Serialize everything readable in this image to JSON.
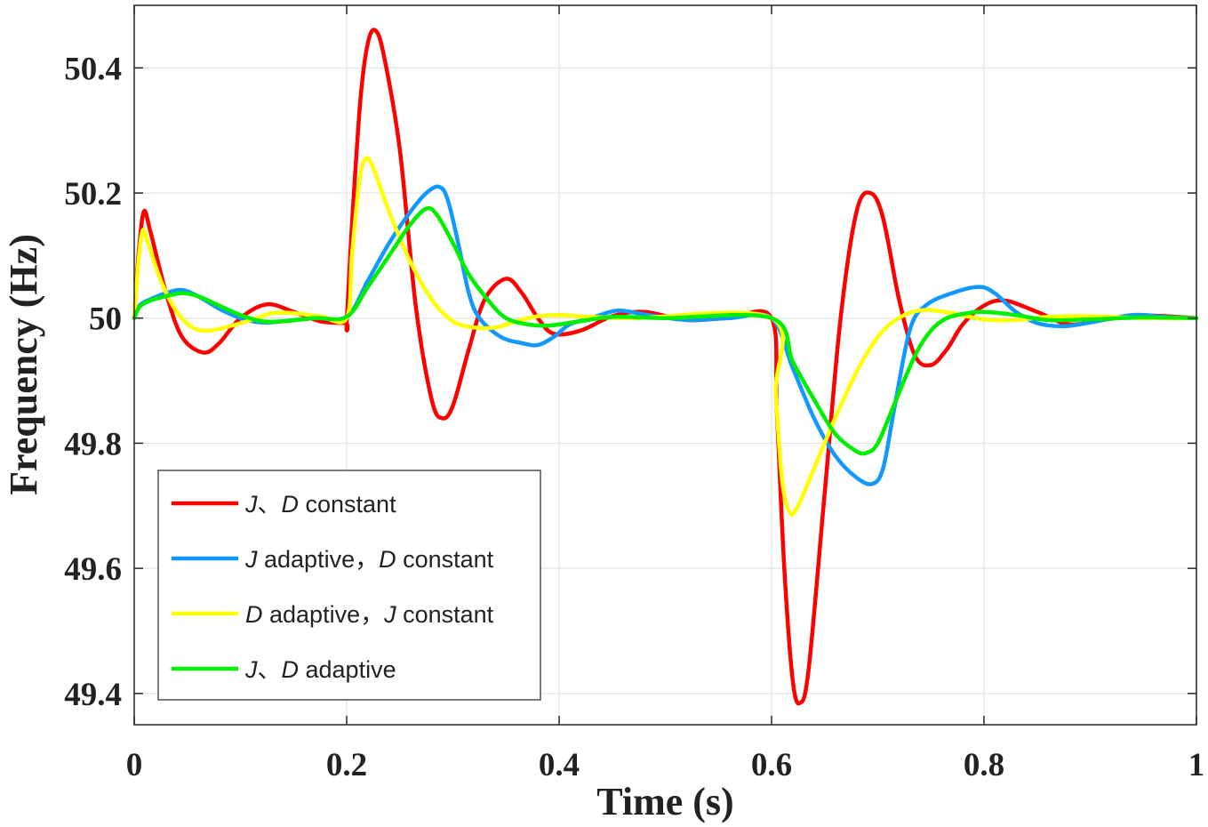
{
  "chart_data": {
    "type": "line",
    "xlabel": "Time (s)",
    "ylabel": "Frequency (Hz)",
    "xlim": [
      0,
      1
    ],
    "ylim": [
      49.35,
      50.5
    ],
    "grid": true,
    "legend_position": "bottom-left",
    "x_ticks": [
      {
        "value": 0,
        "label": "0"
      },
      {
        "value": 0.2,
        "label": "0.2"
      },
      {
        "value": 0.4,
        "label": "0.4"
      },
      {
        "value": 0.6,
        "label": "0.6"
      },
      {
        "value": 0.8,
        "label": "0.8"
      },
      {
        "value": 1,
        "label": "1"
      }
    ],
    "y_ticks": [
      {
        "value": 49.4,
        "label": "49.4"
      },
      {
        "value": 49.6,
        "label": "49.6"
      },
      {
        "value": 49.8,
        "label": "49.8"
      },
      {
        "value": 50.0,
        "label": "50"
      },
      {
        "value": 50.2,
        "label": "50.2"
      },
      {
        "value": 50.4,
        "label": "50.4"
      }
    ],
    "series": [
      {
        "name": "J、D constant",
        "legend_parts": [
          {
            "text": "J",
            "italic": true
          },
          {
            "text": "、",
            "italic": false
          },
          {
            "text": "D",
            "italic": true
          },
          {
            "text": " constant",
            "italic": false
          }
        ],
        "color": "#ff0000",
        "points": [
          [
            0,
            50.0
          ],
          [
            0.004,
            50.1
          ],
          [
            0.009,
            50.17
          ],
          [
            0.015,
            50.14
          ],
          [
            0.03,
            50.04
          ],
          [
            0.045,
            49.97
          ],
          [
            0.065,
            49.945
          ],
          [
            0.08,
            49.96
          ],
          [
            0.1,
            50.0
          ],
          [
            0.125,
            50.022
          ],
          [
            0.15,
            50.01
          ],
          [
            0.175,
            49.995
          ],
          [
            0.199,
            49.992
          ],
          [
            0.2,
            49.992
          ],
          [
            0.205,
            50.15
          ],
          [
            0.213,
            50.35
          ],
          [
            0.22,
            50.44
          ],
          [
            0.227,
            50.46
          ],
          [
            0.235,
            50.42
          ],
          [
            0.25,
            50.27
          ],
          [
            0.265,
            50.02
          ],
          [
            0.28,
            49.87
          ],
          [
            0.29,
            49.84
          ],
          [
            0.3,
            49.86
          ],
          [
            0.315,
            49.95
          ],
          [
            0.33,
            50.03
          ],
          [
            0.35,
            50.063
          ],
          [
            0.365,
            50.04
          ],
          [
            0.38,
            50.0
          ],
          [
            0.395,
            49.975
          ],
          [
            0.42,
            49.98
          ],
          [
            0.45,
            50.003
          ],
          [
            0.48,
            50.01
          ],
          [
            0.52,
            49.997
          ],
          [
            0.56,
            50.0
          ],
          [
            0.6,
            50.0
          ],
          [
            0.605,
            49.85
          ],
          [
            0.612,
            49.6
          ],
          [
            0.62,
            49.42
          ],
          [
            0.627,
            49.385
          ],
          [
            0.635,
            49.44
          ],
          [
            0.65,
            49.72
          ],
          [
            0.665,
            50.0
          ],
          [
            0.68,
            50.17
          ],
          [
            0.693,
            50.2
          ],
          [
            0.705,
            50.16
          ],
          [
            0.72,
            50.03
          ],
          [
            0.735,
            49.94
          ],
          [
            0.75,
            49.925
          ],
          [
            0.765,
            49.95
          ],
          [
            0.78,
            49.99
          ],
          [
            0.8,
            50.02
          ],
          [
            0.82,
            50.028
          ],
          [
            0.85,
            50.01
          ],
          [
            0.88,
            49.99
          ],
          [
            0.91,
            49.997
          ],
          [
            0.95,
            50.004
          ],
          [
            1.0,
            50.0
          ]
        ]
      },
      {
        "name": "J adaptive，D constant",
        "legend_parts": [
          {
            "text": "J",
            "italic": true
          },
          {
            "text": " adaptive，",
            "italic": false
          },
          {
            "text": "D",
            "italic": true
          },
          {
            "text": " constant",
            "italic": false
          }
        ],
        "color": "#1199ff",
        "points": [
          [
            0,
            50.0
          ],
          [
            0.005,
            50.02
          ],
          [
            0.015,
            50.03
          ],
          [
            0.03,
            50.04
          ],
          [
            0.045,
            50.045
          ],
          [
            0.06,
            50.035
          ],
          [
            0.08,
            50.015
          ],
          [
            0.1,
            50.0
          ],
          [
            0.12,
            49.993
          ],
          [
            0.14,
            49.995
          ],
          [
            0.17,
            50.0
          ],
          [
            0.2,
            50.002
          ],
          [
            0.22,
            50.06
          ],
          [
            0.24,
            50.12
          ],
          [
            0.26,
            50.17
          ],
          [
            0.275,
            50.2
          ],
          [
            0.287,
            50.21
          ],
          [
            0.295,
            50.19
          ],
          [
            0.305,
            50.12
          ],
          [
            0.315,
            50.04
          ],
          [
            0.325,
            50.0
          ],
          [
            0.345,
            49.97
          ],
          [
            0.365,
            49.96
          ],
          [
            0.38,
            49.957
          ],
          [
            0.395,
            49.97
          ],
          [
            0.41,
            49.99
          ],
          [
            0.43,
            50.0
          ],
          [
            0.455,
            50.012
          ],
          [
            0.48,
            50.006
          ],
          [
            0.52,
            49.997
          ],
          [
            0.56,
            50.0
          ],
          [
            0.6,
            50.0
          ],
          [
            0.62,
            49.92
          ],
          [
            0.64,
            49.84
          ],
          [
            0.66,
            49.78
          ],
          [
            0.68,
            49.745
          ],
          [
            0.695,
            49.735
          ],
          [
            0.705,
            49.76
          ],
          [
            0.715,
            49.85
          ],
          [
            0.73,
            49.98
          ],
          [
            0.745,
            50.02
          ],
          [
            0.77,
            50.04
          ],
          [
            0.795,
            50.05
          ],
          [
            0.81,
            50.04
          ],
          [
            0.83,
            50.01
          ],
          [
            0.85,
            49.992
          ],
          [
            0.875,
            49.987
          ],
          [
            0.9,
            49.993
          ],
          [
            0.94,
            50.005
          ],
          [
            0.97,
            50.002
          ],
          [
            1.0,
            50.0
          ]
        ]
      },
      {
        "name": "D adaptive，J constant",
        "legend_parts": [
          {
            "text": "D",
            "italic": true
          },
          {
            "text": " adaptive，",
            "italic": false
          },
          {
            "text": "J",
            "italic": true
          },
          {
            "text": " constant",
            "italic": false
          }
        ],
        "color": "#ffff00",
        "points": [
          [
            0,
            50.0
          ],
          [
            0.004,
            50.09
          ],
          [
            0.008,
            50.14
          ],
          [
            0.013,
            50.12
          ],
          [
            0.025,
            50.06
          ],
          [
            0.04,
            50.01
          ],
          [
            0.055,
            49.985
          ],
          [
            0.07,
            49.98
          ],
          [
            0.09,
            49.987
          ],
          [
            0.11,
            49.997
          ],
          [
            0.13,
            50.008
          ],
          [
            0.15,
            50.008
          ],
          [
            0.175,
            50.003
          ],
          [
            0.2,
            50.0
          ],
          [
            0.205,
            50.1
          ],
          [
            0.212,
            50.22
          ],
          [
            0.218,
            50.255
          ],
          [
            0.225,
            50.24
          ],
          [
            0.24,
            50.17
          ],
          [
            0.26,
            50.09
          ],
          [
            0.28,
            50.03
          ],
          [
            0.3,
            49.995
          ],
          [
            0.32,
            49.985
          ],
          [
            0.34,
            49.985
          ],
          [
            0.36,
            49.995
          ],
          [
            0.38,
            50.003
          ],
          [
            0.4,
            50.005
          ],
          [
            0.43,
            50.002
          ],
          [
            0.47,
            50.0
          ],
          [
            0.6,
            50.0
          ],
          [
            0.604,
            49.88
          ],
          [
            0.61,
            49.74
          ],
          [
            0.617,
            49.69
          ],
          [
            0.625,
            49.7
          ],
          [
            0.645,
            49.78
          ],
          [
            0.665,
            49.86
          ],
          [
            0.685,
            49.93
          ],
          [
            0.705,
            49.98
          ],
          [
            0.725,
            50.005
          ],
          [
            0.745,
            50.013
          ],
          [
            0.77,
            50.008
          ],
          [
            0.8,
            49.998
          ],
          [
            0.83,
            49.997
          ],
          [
            0.86,
            50.002
          ],
          [
            0.9,
            50.003
          ],
          [
            0.95,
            50.0
          ],
          [
            1.0,
            50.0
          ]
        ]
      },
      {
        "name": "J、D adaptive",
        "legend_parts": [
          {
            "text": "J",
            "italic": true
          },
          {
            "text": "、",
            "italic": false
          },
          {
            "text": "D",
            "italic": true
          },
          {
            "text": " adaptive",
            "italic": false
          }
        ],
        "color": "#00ee00",
        "points": [
          [
            0,
            50.0
          ],
          [
            0.005,
            50.018
          ],
          [
            0.015,
            50.028
          ],
          [
            0.03,
            50.035
          ],
          [
            0.045,
            50.04
          ],
          [
            0.06,
            50.035
          ],
          [
            0.08,
            50.02
          ],
          [
            0.1,
            50.005
          ],
          [
            0.12,
            49.995
          ],
          [
            0.14,
            49.995
          ],
          [
            0.17,
            50.0
          ],
          [
            0.2,
            50.002
          ],
          [
            0.22,
            50.05
          ],
          [
            0.24,
            50.1
          ],
          [
            0.26,
            50.15
          ],
          [
            0.275,
            50.175
          ],
          [
            0.285,
            50.165
          ],
          [
            0.3,
            50.12
          ],
          [
            0.315,
            50.07
          ],
          [
            0.335,
            50.025
          ],
          [
            0.35,
            50.0
          ],
          [
            0.37,
            49.99
          ],
          [
            0.39,
            49.988
          ],
          [
            0.42,
            49.995
          ],
          [
            0.45,
            50.002
          ],
          [
            0.5,
            50.0
          ],
          [
            0.6,
            50.0
          ],
          [
            0.62,
            49.93
          ],
          [
            0.64,
            49.87
          ],
          [
            0.66,
            49.815
          ],
          [
            0.68,
            49.787
          ],
          [
            0.69,
            49.785
          ],
          [
            0.7,
            49.8
          ],
          [
            0.715,
            49.86
          ],
          [
            0.735,
            49.94
          ],
          [
            0.75,
            49.98
          ],
          [
            0.765,
            50.0
          ],
          [
            0.785,
            50.008
          ],
          [
            0.8,
            50.01
          ],
          [
            0.83,
            50.005
          ],
          [
            0.86,
            49.997
          ],
          [
            0.9,
            49.998
          ],
          [
            0.95,
            50.001
          ],
          [
            1.0,
            50.0
          ]
        ]
      }
    ]
  }
}
